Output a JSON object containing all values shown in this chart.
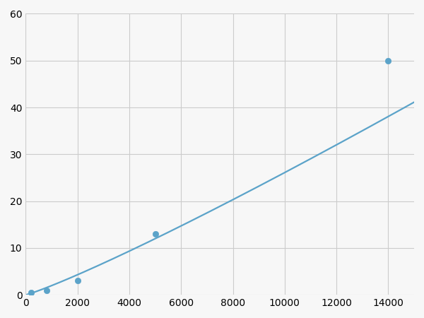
{
  "x": [
    200,
    800,
    2000,
    5000,
    14000
  ],
  "y": [
    0.5,
    1.0,
    3.0,
    13.0,
    50.0
  ],
  "line_color": "#5ba3c9",
  "marker_color": "#5ba3c9",
  "marker_size": 6,
  "line_width": 1.6,
  "xlim": [
    0,
    15000
  ],
  "ylim": [
    0,
    60
  ],
  "xticks": [
    0,
    2000,
    4000,
    6000,
    8000,
    10000,
    12000,
    14000
  ],
  "yticks": [
    0,
    10,
    20,
    30,
    40,
    50,
    60
  ],
  "grid_color": "#cccccc",
  "background_color": "#f7f7f7",
  "tick_fontsize": 10
}
